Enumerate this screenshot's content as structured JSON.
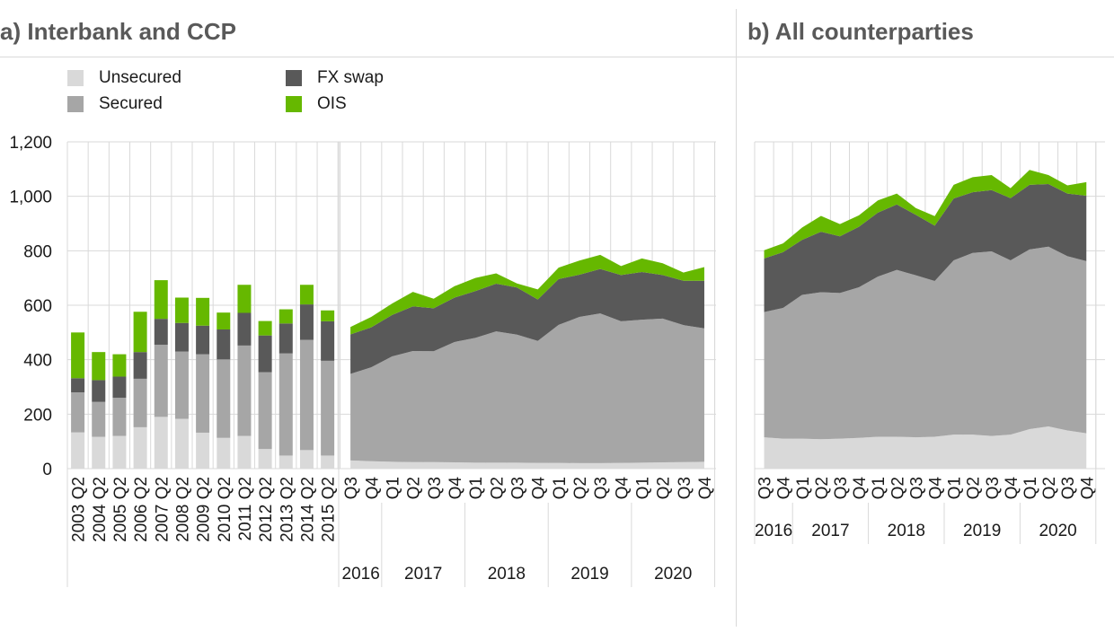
{
  "panel_a": {
    "title": "a) Interbank and CCP"
  },
  "panel_b": {
    "title": "b) All counterparties"
  },
  "legend": [
    {
      "label": "Unsecured",
      "color": "#d9d9d9"
    },
    {
      "label": "Secured",
      "color": "#a6a6a6"
    },
    {
      "label": "FX swap",
      "color": "#595959"
    },
    {
      "label": "OIS",
      "color": "#66b800"
    }
  ],
  "chart_data": [
    {
      "type": "bar",
      "stacked": true,
      "panel": "a",
      "ylim": [
        0,
        1200
      ],
      "yticks": [
        "0",
        "200",
        "400",
        "600",
        "800",
        "1,000",
        "1,200"
      ],
      "grid": true,
      "categories": [
        "2003 Q2",
        "2004 Q2",
        "2005 Q2",
        "2006 Q2",
        "2007 Q2",
        "2008 Q2",
        "2009 Q2",
        "2010 Q2",
        "2011 Q2",
        "2012 Q2",
        "2013 Q2",
        "2014 Q2",
        "2015 Q2"
      ],
      "series": [
        {
          "name": "Unsecured",
          "values": [
            133,
            117,
            120,
            152,
            190,
            183,
            132,
            113,
            120,
            72,
            48,
            68,
            48
          ]
        },
        {
          "name": "Secured",
          "values": [
            147,
            128,
            140,
            178,
            265,
            247,
            288,
            288,
            332,
            282,
            375,
            405,
            348
          ]
        },
        {
          "name": "FX swap",
          "values": [
            52,
            80,
            78,
            98,
            95,
            105,
            105,
            110,
            120,
            135,
            110,
            130,
            145
          ]
        },
        {
          "name": "OIS",
          "values": [
            168,
            103,
            82,
            148,
            142,
            93,
            102,
            62,
            103,
            53,
            52,
            72,
            40
          ]
        }
      ]
    },
    {
      "type": "area",
      "stacked": true,
      "panel": "a",
      "ylim": [
        0,
        1200
      ],
      "x": [
        "Q3",
        "Q4",
        "Q1",
        "Q2",
        "Q3",
        "Q4",
        "Q1",
        "Q2",
        "Q3",
        "Q4",
        "Q1",
        "Q2",
        "Q3",
        "Q4",
        "Q1",
        "Q2",
        "Q3",
        "Q4"
      ],
      "year_groups": [
        {
          "label": "2016",
          "count": 2
        },
        {
          "label": "2017",
          "count": 4
        },
        {
          "label": "2018",
          "count": 4
        },
        {
          "label": "2019",
          "count": 4
        },
        {
          "label": "2020",
          "count": 4
        }
      ],
      "series": [
        {
          "name": "Unsecured",
          "values": [
            30,
            27,
            25,
            24,
            24,
            23,
            22,
            22,
            22,
            21,
            21,
            20,
            20,
            21,
            22,
            23,
            24,
            25
          ]
        },
        {
          "name": "Secured",
          "values": [
            318,
            345,
            387,
            408,
            407,
            442,
            458,
            482,
            470,
            448,
            507,
            537,
            550,
            520,
            525,
            528,
            503,
            490
          ]
        },
        {
          "name": "FX swap",
          "values": [
            145,
            147,
            152,
            164,
            158,
            163,
            172,
            175,
            173,
            152,
            168,
            155,
            163,
            170,
            175,
            160,
            163,
            175
          ]
        },
        {
          "name": "OIS",
          "values": [
            27,
            38,
            42,
            53,
            35,
            42,
            48,
            38,
            15,
            37,
            42,
            52,
            52,
            33,
            50,
            43,
            30,
            50
          ]
        }
      ]
    },
    {
      "type": "area",
      "stacked": true,
      "panel": "b",
      "ylim": [
        0,
        1200
      ],
      "x": [
        "Q3",
        "Q4",
        "Q1",
        "Q2",
        "Q3",
        "Q4",
        "Q1",
        "Q2",
        "Q3",
        "Q4",
        "Q1",
        "Q2",
        "Q3",
        "Q4",
        "Q1",
        "Q2",
        "Q3",
        "Q4"
      ],
      "year_groups": [
        {
          "label": "2016",
          "count": 2
        },
        {
          "label": "2017",
          "count": 4
        },
        {
          "label": "2018",
          "count": 4
        },
        {
          "label": "2019",
          "count": 4
        },
        {
          "label": "2020",
          "count": 4
        }
      ],
      "series": [
        {
          "name": "Unsecured",
          "values": [
            115,
            110,
            110,
            108,
            110,
            113,
            117,
            117,
            115,
            117,
            125,
            125,
            120,
            125,
            145,
            155,
            140,
            130
          ]
        },
        {
          "name": "Secured",
          "values": [
            460,
            480,
            528,
            540,
            535,
            553,
            588,
            613,
            595,
            572,
            640,
            667,
            678,
            640,
            660,
            660,
            640,
            632
          ]
        },
        {
          "name": "FX swap",
          "values": [
            197,
            205,
            202,
            222,
            208,
            222,
            235,
            240,
            222,
            203,
            227,
            223,
            225,
            228,
            237,
            230,
            230,
            240
          ]
        },
        {
          "name": "OIS",
          "values": [
            30,
            32,
            45,
            58,
            45,
            42,
            45,
            40,
            25,
            35,
            50,
            55,
            55,
            37,
            55,
            33,
            30,
            50
          ]
        }
      ]
    }
  ]
}
